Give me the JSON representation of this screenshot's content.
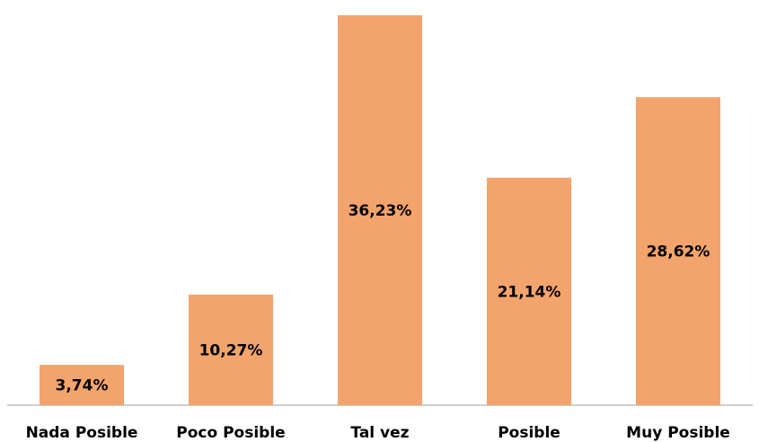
{
  "chart_data": {
    "type": "bar",
    "title": "",
    "xlabel": "",
    "ylabel": "",
    "categories": [
      "Nada Posible",
      "Poco Posible",
      "Tal vez",
      "Posible",
      "Muy Posible"
    ],
    "values": [
      3.74,
      10.27,
      36.23,
      21.14,
      28.62
    ],
    "value_labels": [
      "3,74%",
      "10,27%",
      "36,23%",
      "21,14%",
      "28,62%"
    ],
    "ylim": [
      0,
      36.23
    ],
    "grid": false,
    "legend": "none",
    "bar_color": "#F2A46C"
  }
}
